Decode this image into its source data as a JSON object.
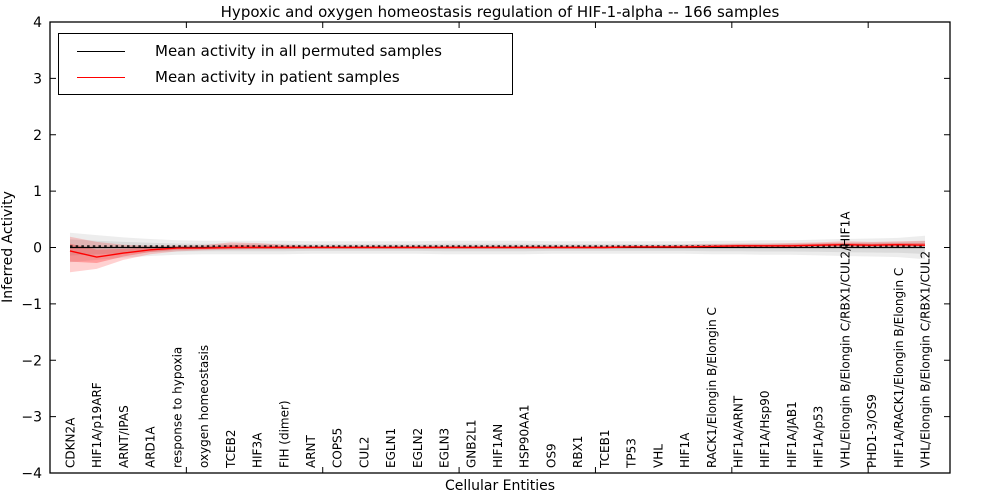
{
  "figure": {
    "title": "Hypoxic and oxygen homeostasis regulation of HIF-1-alpha -- 166 samples",
    "xlabel": "Cellular Entities",
    "ylabel": "Inferred Activity"
  },
  "legend": {
    "permuted_label": "Mean activity in all permuted samples",
    "patient_label": "Mean activity in patient samples"
  },
  "colors": {
    "permuted_line": "#000000",
    "patient_line": "#ff0000",
    "permuted_band": "#999999",
    "patient_band": "#ff0000",
    "axis": "#000000"
  },
  "chart_data": {
    "type": "line",
    "title": "Hypoxic and oxygen homeostasis regulation of HIF-1-alpha -- 166 samples",
    "xlabel": "Cellular Entities",
    "ylabel": "Inferred Activity",
    "ylim": [
      -4,
      4
    ],
    "yticks": [
      -4,
      -3,
      -2,
      -1,
      0,
      1,
      2,
      3,
      4
    ],
    "xtick_units": [
      0,
      5,
      10,
      15,
      20,
      25,
      30
    ],
    "grid": false,
    "legend_position": "upper left",
    "categories": [
      "CDKN2A",
      "HIF1A/p19ARF",
      "ARNT/IPAS",
      "ARD1A",
      "response to hypoxia",
      "oxygen homeostasis",
      "TCEB2",
      "HIF3A",
      "FIH (dimer)",
      "ARNT",
      "COPS5",
      "CUL2",
      "EGLN1",
      "EGLN2",
      "EGLN3",
      "GNB2L1",
      "HIF1AN",
      "HSP90AA1",
      "OS9",
      "RBX1",
      "TCEB1",
      "TP53",
      "VHL",
      "HIF1A",
      "RACK1/Elongin B/Elongin C",
      "HIF1A/ARNT",
      "HIF1A/Hsp90",
      "HIF1A/JAB1",
      "HIF1A/p53",
      "VHL/Elongin B/Elongin C/RBX1/CUL2/HIF1A",
      "PHD1-3/OS9",
      "HIF1A/RACK1/Elongin B/Elongin C",
      "VHL/Elongin B/Elongin C/RBX1/CUL2"
    ],
    "series": [
      {
        "name": "Mean activity in all permuted samples",
        "color": "#000000",
        "style": "solid-with-dash-overlay",
        "values": [
          0,
          0,
          0,
          0,
          0,
          0,
          0,
          0,
          0,
          0,
          0,
          0,
          0,
          0,
          0,
          0,
          0,
          0,
          0,
          0,
          0,
          0,
          0,
          0,
          0,
          0,
          0,
          0,
          0,
          0,
          0,
          0,
          0
        ],
        "band_half": [
          0.26,
          0.22,
          0.18,
          0.15,
          0.13,
          0.12,
          0.12,
          0.12,
          0.12,
          0.11,
          0.11,
          0.11,
          0.11,
          0.11,
          0.12,
          0.12,
          0.12,
          0.12,
          0.11,
          0.11,
          0.11,
          0.11,
          0.11,
          0.11,
          0.12,
          0.12,
          0.13,
          0.13,
          0.14,
          0.15,
          0.16,
          0.17,
          0.21
        ],
        "band_color": "#999999"
      },
      {
        "name": "Mean activity in patient samples",
        "color": "#ff0000",
        "style": "solid",
        "values": [
          -0.06,
          -0.17,
          -0.1,
          -0.04,
          -0.01,
          -0.01,
          0,
          0,
          0,
          0,
          0,
          0,
          0,
          0,
          0,
          0,
          0,
          0,
          0,
          0,
          0,
          0.01,
          0.01,
          0.01,
          0.02,
          0.03,
          0.03,
          0.03,
          0.04,
          0.05,
          0.04,
          0.05,
          0.04
        ],
        "band_upper": [
          0.19,
          0.1,
          0.05,
          0.03,
          0.03,
          0.04,
          0.09,
          0.08,
          0.05,
          0.03,
          0.03,
          0.03,
          0.03,
          0.03,
          0.03,
          0.03,
          0.03,
          0.03,
          0.03,
          0.03,
          0.03,
          0.04,
          0.04,
          0.05,
          0.06,
          0.07,
          0.07,
          0.08,
          0.09,
          0.11,
          0.1,
          0.11,
          0.12
        ],
        "band_lower": [
          -0.44,
          -0.38,
          -0.22,
          -0.12,
          -0.07,
          -0.05,
          -0.04,
          -0.03,
          -0.03,
          -0.02,
          -0.02,
          -0.02,
          -0.02,
          -0.02,
          -0.02,
          -0.02,
          -0.02,
          -0.02,
          -0.02,
          -0.02,
          -0.02,
          -0.01,
          -0.01,
          -0.01,
          0.0,
          0.0,
          0.0,
          0.0,
          0.01,
          0.01,
          0.01,
          0.01,
          0.02
        ],
        "band_color": "#ff0000"
      }
    ]
  }
}
